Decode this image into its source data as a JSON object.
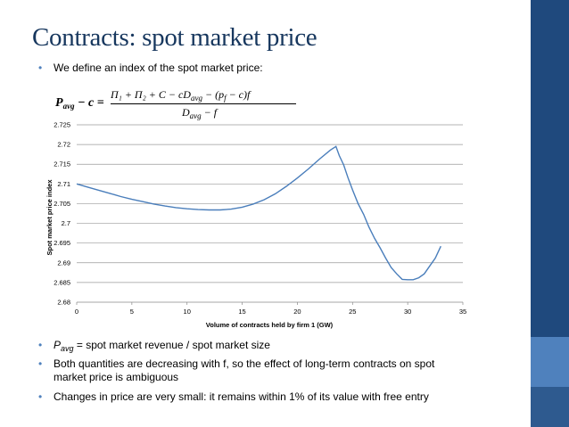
{
  "slide": {
    "title": "Contracts: spot market price",
    "intro": "We define an index of the spot market price:",
    "formula": {
      "lhs": "P",
      "lhs_sub": "avg",
      "lhs_rest": " − c =",
      "numerator": "Π₁ + Π₂ + C − cD",
      "numerator_sub": "avg",
      "numerator_rest": " − (p",
      "numerator_rest_sub": "f",
      "numerator_tail": " − c)f",
      "denominator": "D",
      "denominator_sub": "avg",
      "denominator_rest": " − f"
    },
    "bullets": [
      {
        "pre": "P",
        "sub": "avg",
        "post": " = spot market revenue / spot market size"
      },
      {
        "line1": "Both quantities are decreasing with f, so the effect of long-term contracts on spot",
        "line2": "market price is ambiguous"
      },
      {
        "text": "Changes in price are very small: it remains within 1% of its value with free entry"
      }
    ]
  },
  "colors": {
    "title": "#17375e",
    "bullet": "#4f81bd",
    "line": "#4a7ebb",
    "sidebar_dark": "#1f497d",
    "sidebar_light": "#4f81bd"
  },
  "chart_data": {
    "type": "line",
    "xlabel": "Volume of contracts held by firm 1 (GW)",
    "ylabel": "Spot market price index",
    "xlim": [
      0,
      35
    ],
    "ylim": [
      2.68,
      2.725
    ],
    "x_ticks": [
      "0",
      "5",
      "10",
      "15",
      "20",
      "25",
      "30",
      "35"
    ],
    "y_ticks": [
      "2.68",
      "2.685",
      "2.69",
      "2.695",
      "2.7",
      "2.705",
      "2.71",
      "2.715",
      "2.72",
      "2.725"
    ],
    "grid": "horizontal",
    "series": [
      {
        "x": [
          0,
          1,
          2,
          3,
          4,
          5,
          6,
          7,
          8,
          9,
          10,
          11,
          12,
          13,
          14,
          15,
          16,
          17,
          18,
          19,
          20,
          21,
          22,
          23,
          23.5,
          23.8,
          24.2,
          24.6,
          25,
          25.5,
          26,
          26.5,
          27,
          27.5,
          28,
          28.5,
          29,
          29.5,
          30,
          30.5,
          31,
          31.5,
          32,
          32.5,
          33
        ],
        "y": [
          2.71,
          2.7092,
          2.7084,
          2.7076,
          2.7068,
          2.7061,
          2.7055,
          2.7049,
          2.7044,
          2.704,
          2.7037,
          2.7035,
          2.7034,
          2.7034,
          2.7036,
          2.7041,
          2.7049,
          2.706,
          2.7075,
          2.7094,
          2.7115,
          2.7138,
          2.7163,
          2.7186,
          2.7195,
          2.7172,
          2.7148,
          2.7115,
          2.7085,
          2.705,
          2.7023,
          2.699,
          2.6962,
          2.6938,
          2.6912,
          2.6888,
          2.6872,
          2.6858,
          2.6857,
          2.6857,
          2.6862,
          2.6872,
          2.6892,
          2.6912,
          2.6942
        ]
      }
    ]
  }
}
